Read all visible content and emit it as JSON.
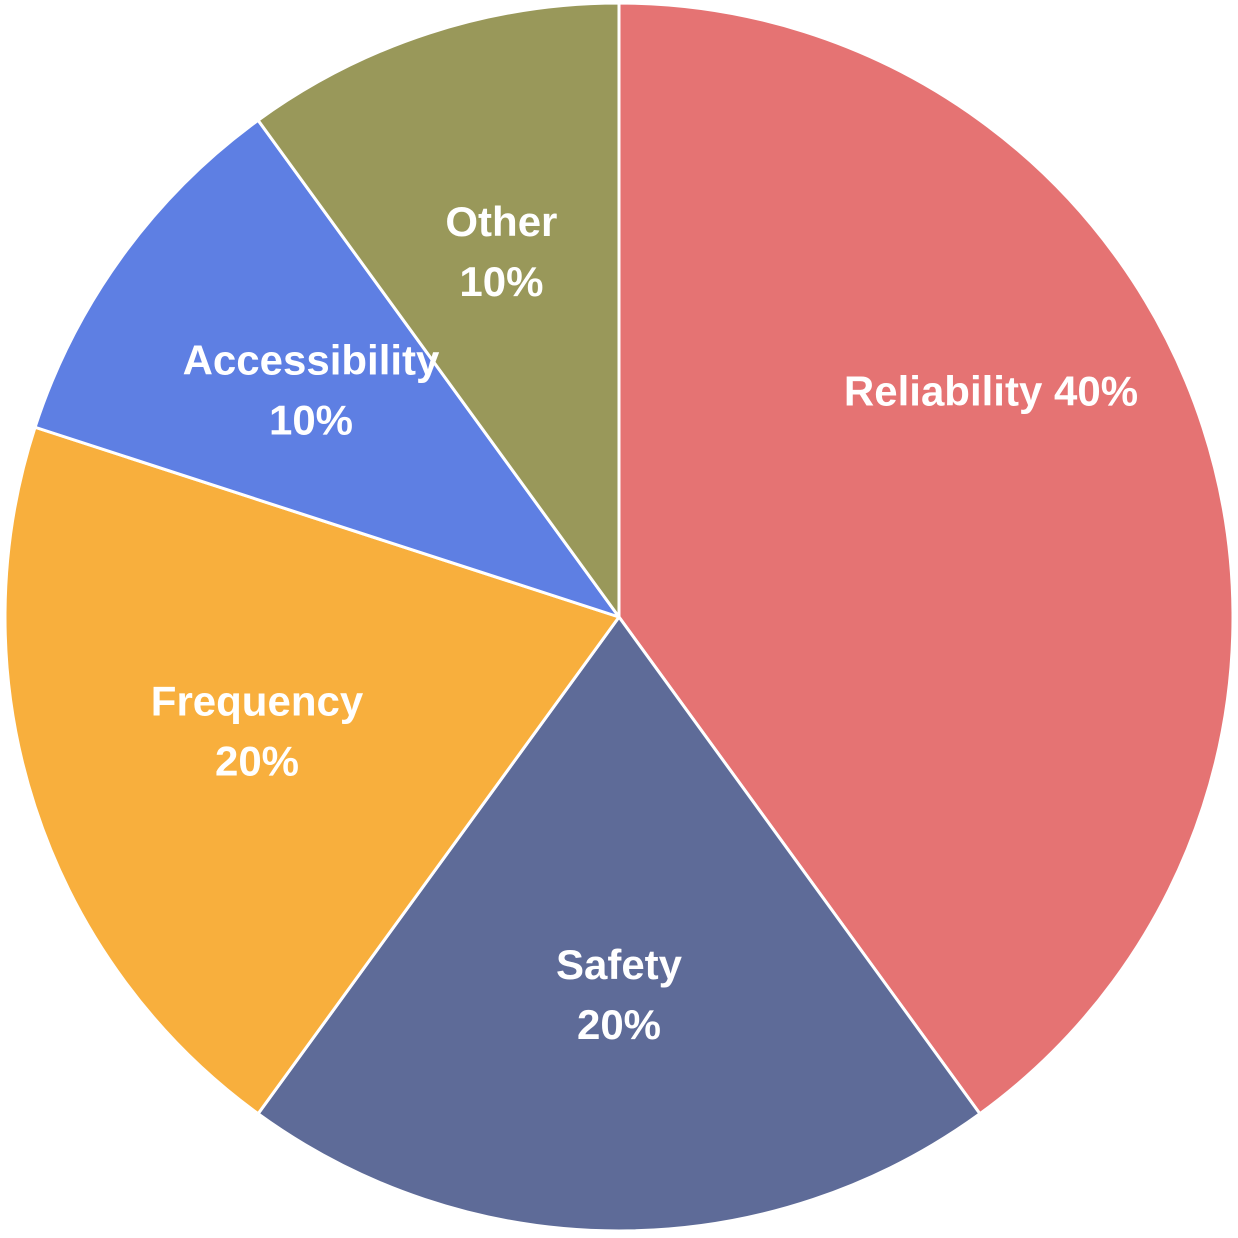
{
  "chart_data": {
    "type": "pie",
    "title": "",
    "slices": [
      {
        "name": "Reliability",
        "value": 40,
        "pct_label": "40%",
        "color": "#E57373",
        "label_style": "inline"
      },
      {
        "name": "Safety",
        "value": 20,
        "pct_label": "20%",
        "color": "#5E6B98",
        "label_style": "stacked"
      },
      {
        "name": "Frequency",
        "value": 20,
        "pct_label": "20%",
        "color": "#F8AF3D",
        "label_style": "stacked"
      },
      {
        "name": "Accessibility",
        "value": 10,
        "pct_label": "10%",
        "color": "#5E7FE3",
        "label_style": "stacked"
      },
      {
        "name": "Other",
        "value": 10,
        "pct_label": "10%",
        "color": "#99985A",
        "label_style": "stacked"
      }
    ],
    "start_angle": "12 o'clock",
    "direction": "clockwise",
    "legend": "none"
  }
}
